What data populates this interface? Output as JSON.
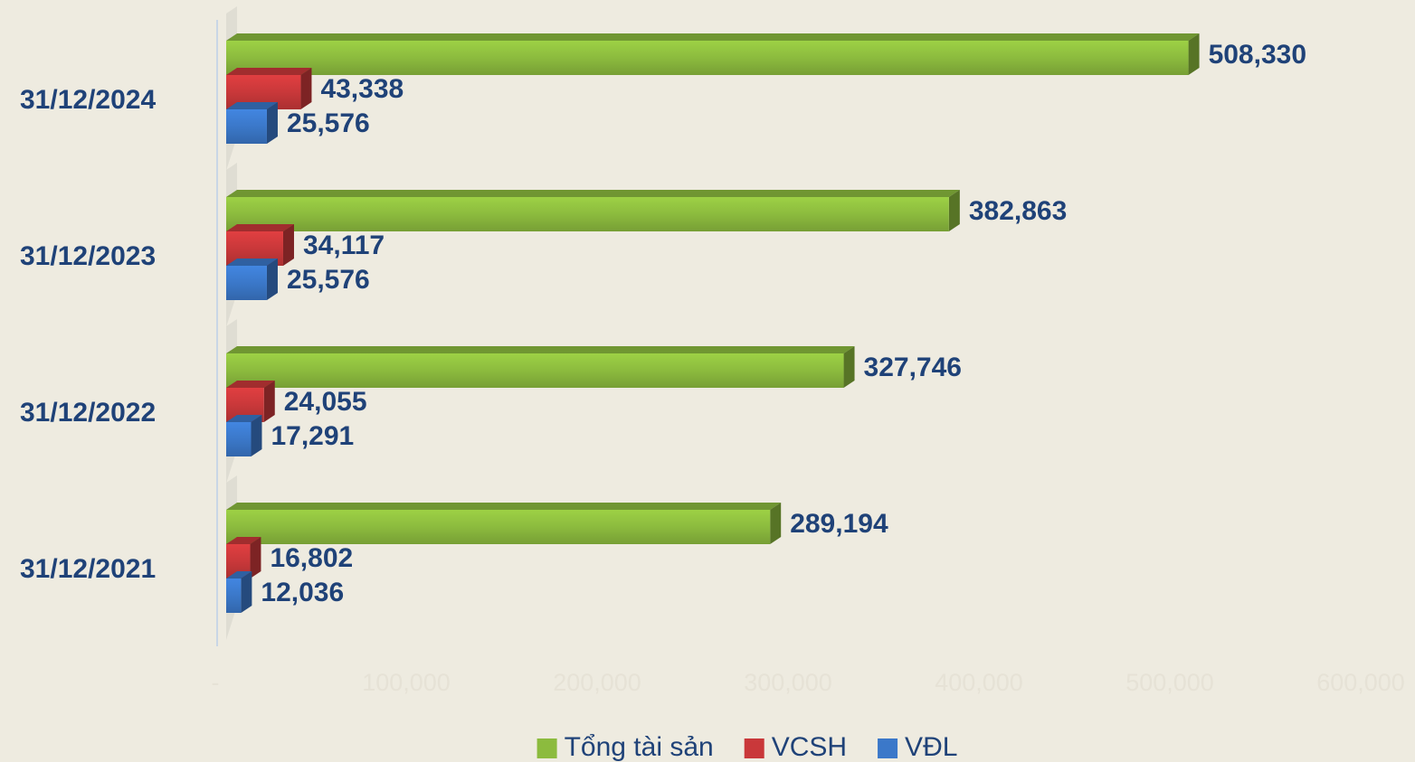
{
  "chart_data": {
    "type": "bar3d_horizontal",
    "categories": [
      "31/12/2024",
      "31/12/2023",
      "31/12/2022",
      "31/12/2021"
    ],
    "series": [
      {
        "name": "Tổng tài sản",
        "color": "#8cbb3e",
        "values": [
          508330,
          382863,
          327746,
          289194
        ],
        "value_labels": [
          "508,330",
          "382,863",
          "327,746",
          "289,194"
        ]
      },
      {
        "name": "VCSH",
        "color": "#c9383a",
        "values": [
          43338,
          34117,
          24055,
          16802
        ],
        "value_labels": [
          "43,338",
          "34,117",
          "24,055",
          "16,802"
        ]
      },
      {
        "name": "VĐL",
        "color": "#3b78c9",
        "values": [
          25576,
          25576,
          17291,
          12036
        ],
        "value_labels": [
          "25,576",
          "25,576",
          "17,291",
          "12,036"
        ]
      }
    ],
    "xlim": [
      0,
      600000
    ],
    "xticks": [
      {
        "value": 0,
        "label": "-"
      },
      {
        "value": 100000,
        "label": "100,000"
      },
      {
        "value": 200000,
        "label": "200,000"
      },
      {
        "value": 300000,
        "label": "300,000"
      },
      {
        "value": 400000,
        "label": "400,000"
      },
      {
        "value": 500000,
        "label": "500,000"
      },
      {
        "value": 600000,
        "label": "600,000"
      }
    ],
    "legend": "bottom"
  }
}
